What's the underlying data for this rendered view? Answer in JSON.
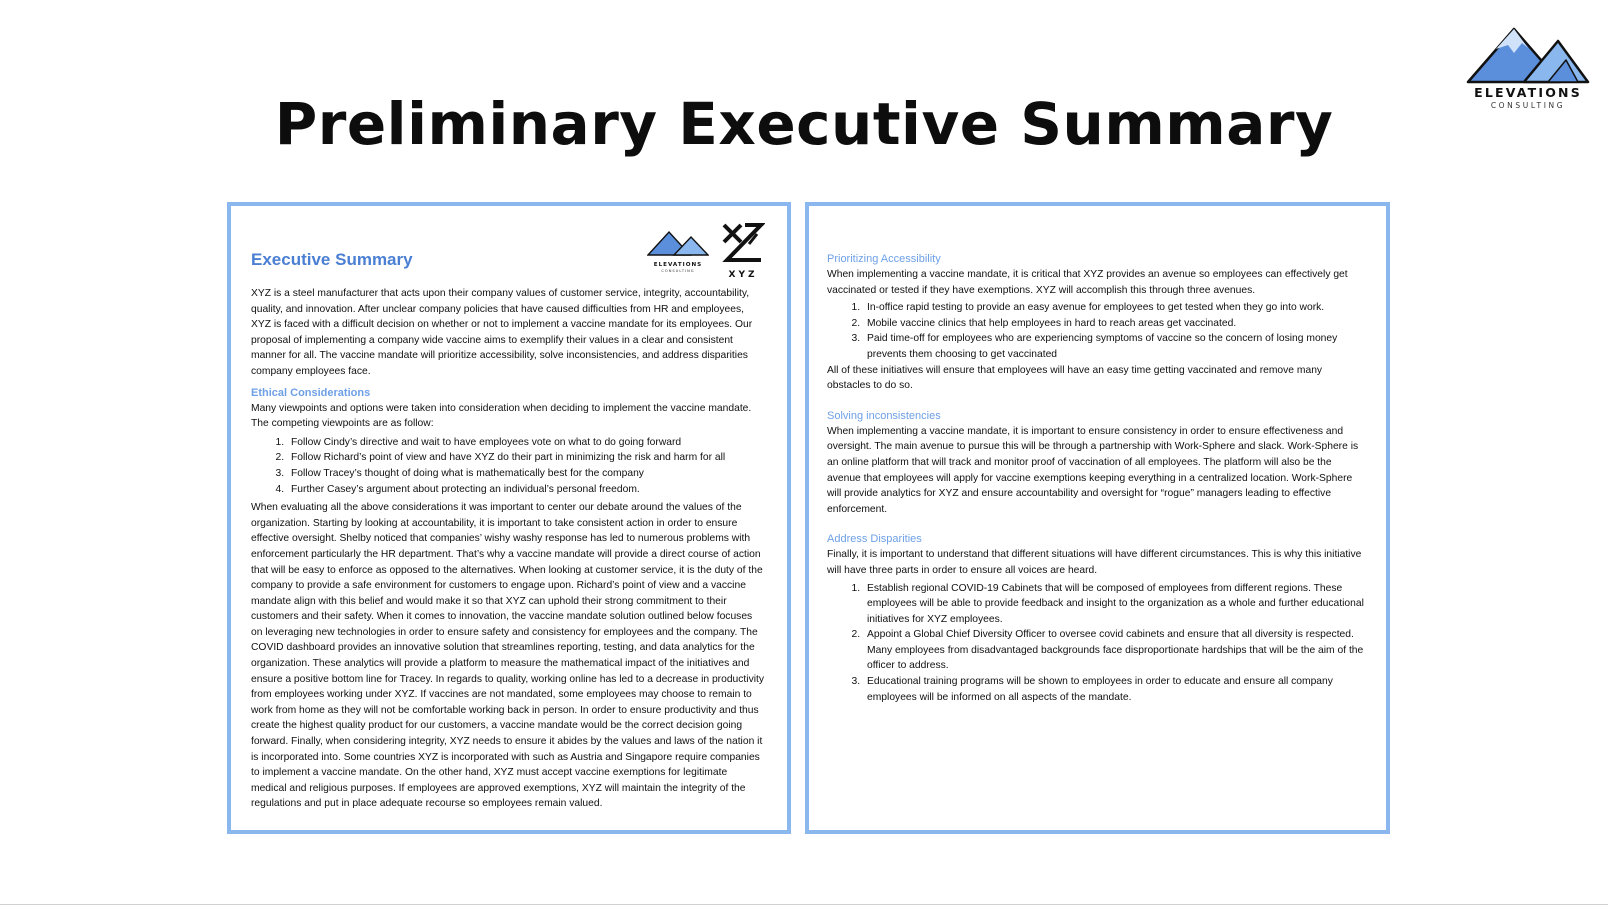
{
  "slide": {
    "title": "Preliminary Executive Summary",
    "brand": {
      "name": "ELEVATIONS",
      "sub": "CONSULTING"
    }
  },
  "left_page": {
    "logo_elevations": {
      "name": "ELEVATIONS",
      "sub": "CONSULTING"
    },
    "logo_xyz": "XYZ",
    "title": "Executive Summary",
    "intro": "XYZ is a steel manufacturer that acts upon their company values of customer service, integrity, accountability, quality, and innovation. After unclear company policies that have caused difficulties from HR and employees, XYZ is faced with a difficult decision on whether or not to implement a vaccine mandate for its employees. Our proposal of implementing a company wide vaccine aims to exemplify their values in a clear and consistent manner for all. The vaccine mandate will prioritize accessibility, solve inconsistencies, and address disparities company employees face.",
    "ethical": {
      "heading": "Ethical Considerations",
      "lead": "Many viewpoints and options were taken into consideration when deciding to implement the vaccine mandate. The competing viewpoints are as follow:",
      "items": [
        "Follow Cindy’s directive and wait to have employees vote on what to do going forward",
        "Follow Richard’s point of view and have XYZ do their part in minimizing the risk and harm for all",
        "Follow Tracey’s thought of doing what is mathematically best for the company",
        "Further Casey’s argument about protecting an individual’s personal freedom."
      ],
      "body": "When evaluating all the above considerations it was important to center our debate around the values of the organization. Starting by looking at accountability, it is important to take consistent action in order to ensure effective oversight. Shelby noticed that companies’ wishy washy response has led to numerous problems with enforcement particularly the HR department. That’s why a vaccine mandate will provide a direct course of action that will be easy to enforce as opposed to the alternatives. When looking at customer service, it is the duty of the company to provide a safe environment for customers to engage upon. Richard’s point of view and a vaccine mandate align with this belief and would make it so that XYZ can uphold their strong commitment to their customers and their safety. When it comes to innovation, the vaccine mandate solution outlined below focuses on leveraging new technologies in order to ensure safety and consistency for employees and the company. The COVID dashboard provides an innovative solution that streamlines reporting, testing, and data analytics for the organization. These analytics will provide a platform to measure the mathematical impact of the initiatives and ensure a positive bottom line for Tracey. In regards to quality, working online has led to a decrease in productivity from employees working under XYZ. If vaccines are not mandated, some employees may choose to remain to work from home as they will not be comfortable working back in person. In order to ensure productivity and thus create the highest quality product for our customers, a vaccine mandate would be the correct decision going forward. Finally, when considering integrity, XYZ needs to ensure it abides by the values and laws of the nation it is incorporated into. Some countries XYZ is incorporated with such as Austria and Singapore require companies to implement a vaccine mandate. On the other hand, XYZ must accept vaccine exemptions for legitimate medical and religious purposes. If employees are approved exemptions, XYZ will maintain the integrity of the regulations and put in place adequate recourse so employees remain valued."
    }
  },
  "right_page": {
    "accessibility": {
      "heading": "Prioritizing Accessibility",
      "lead": "When implementing a vaccine mandate, it is critical that XYZ provides an avenue so employees can effectively get vaccinated or tested if they have exemptions. XYZ will accomplish this through three avenues.",
      "items": [
        "In-office rapid testing to provide an easy avenue for employees to get tested when they go into work.",
        "Mobile vaccine clinics that help employees in hard to reach areas get vaccinated.",
        "Paid time-off for employees who are experiencing symptoms of vaccine so the concern of losing money prevents them choosing to get vaccinated"
      ],
      "closing": "All of these initiatives will ensure that employees will have an easy time getting vaccinated and remove many obstacles to do so."
    },
    "inconsistencies": {
      "heading": "Solving inconsistencies",
      "body": "When implementing a vaccine mandate, it is important to ensure consistency in order to ensure effectiveness and oversight. The main avenue to pursue this will be through a partnership with Work-Sphere and slack. Work-Sphere is an online platform that will track and monitor proof of vaccination of all employees. The platform will also be the avenue that employees will apply for vaccine exemptions keeping everything in a centralized location. Work-Sphere will provide analytics for XYZ and ensure accountability and oversight for “rogue” managers leading to effective enforcement."
    },
    "disparities": {
      "heading": "Address Disparities",
      "lead": "Finally, it is important to understand that different situations will have different circumstances. This is why this initiative will have three parts in order to ensure all voices are heard.",
      "items": [
        "Establish regional COVID-19 Cabinets that will be composed of employees from different regions. These employees will be able to provide feedback and insight to the organization as a whole and further educational initiatives for XYZ employees.",
        "Appoint a Global Chief Diversity Officer to oversee covid cabinets and ensure that all diversity is respected. Many employees from disadvantaged backgrounds face disproportionate hardships that will be the aim of the officer to address.",
        "Educational training programs will be shown to employees in order to educate and ensure all company employees will be informed on all aspects of the mandate."
      ]
    }
  },
  "colors": {
    "border": "#8ab8ee",
    "heading_blue": "#4a7fd3",
    "subheading_blue": "#6ea0e6",
    "mountain_dark": "#3d6fc4",
    "mountain_light": "#8ab8ee"
  }
}
